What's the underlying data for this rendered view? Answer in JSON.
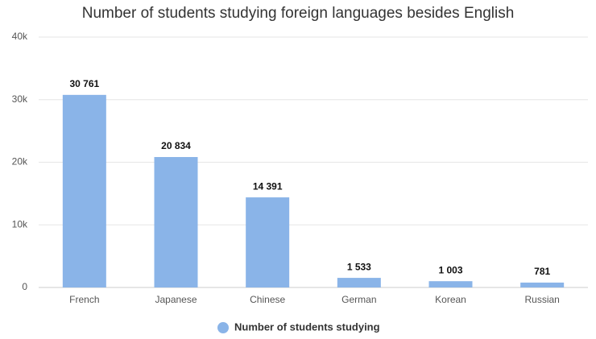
{
  "chart_data": {
    "type": "bar",
    "title": "Number of students studying foreign languages besides English",
    "categories": [
      "French",
      "Japanese",
      "Chinese",
      "German",
      "Korean",
      "Russian"
    ],
    "series": [
      {
        "name": "Number of students studying",
        "color": "#8ab4e8",
        "values": [
          30761,
          20834,
          14391,
          1533,
          1003,
          781
        ],
        "value_labels": [
          "30 761",
          "20 834",
          "14 391",
          "1 533",
          "1 003",
          "781"
        ]
      }
    ],
    "ylim": [
      0,
      40000
    ],
    "yticks": [
      0,
      {
        "value": 10000,
        "label": "10k"
      },
      {
        "value": 20000,
        "label": "20k"
      },
      {
        "value": 30000,
        "label": "30k"
      },
      {
        "value": 40000,
        "label": "40k"
      }
    ],
    "grid": true
  }
}
